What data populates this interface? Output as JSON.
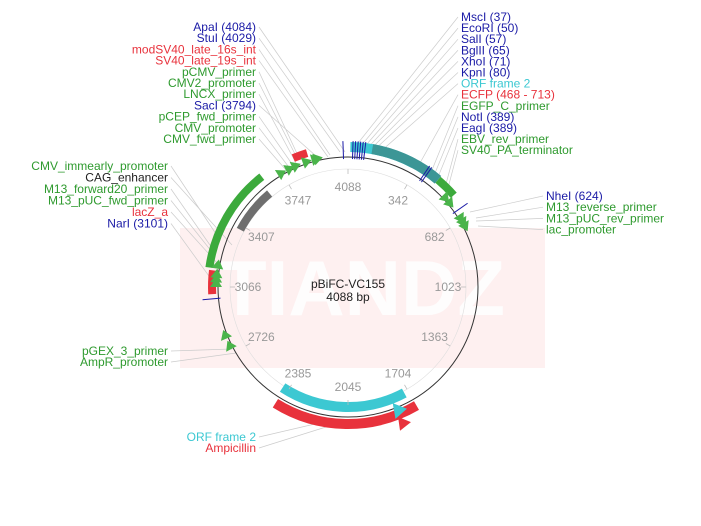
{
  "plasmid": {
    "name": "pBiFC-VC155",
    "size_label": "4088 bp",
    "total_bp": 4088
  },
  "watermark": "TIANDZ",
  "colors": {
    "enzyme": "#1a1aa6",
    "primer": "#2e9a2e",
    "promoter": "#2e9a2e",
    "red": "#e8323c",
    "cyan": "#3cc8d2",
    "green_bar": "#3caa3c",
    "grey_bar": "#6e6e6e",
    "teal_bar": "#3c9696",
    "arrow_green": "#4ab44a"
  },
  "ticks": [
    "4088",
    "342",
    "682",
    "1023",
    "1363",
    "1704",
    "2045",
    "2385",
    "2726",
    "3066",
    "3407",
    "3747"
  ],
  "left_top_labels": [
    {
      "text": "ApaI (4084)",
      "type": "enzyme"
    },
    {
      "text": "StuI (4029)",
      "type": "enzyme"
    },
    {
      "text": "modSV40_late_16s_int",
      "type": "red"
    },
    {
      "text": "SV40_late_19s_int",
      "type": "red"
    },
    {
      "text": "pCMV_primer",
      "type": "primer"
    },
    {
      "text": "CMV2_promoter",
      "type": "primer"
    },
    {
      "text": "LNCX_primer",
      "type": "primer"
    },
    {
      "text": "SacI (3794)",
      "type": "enzyme"
    },
    {
      "text": "pCEP_fwd_primer",
      "type": "primer"
    },
    {
      "text": "CMV_promoter",
      "type": "primer"
    },
    {
      "text": "CMV_fwd_primer",
      "type": "primer"
    }
  ],
  "left_mid_labels": [
    {
      "text": "CMV_immearly_promoter",
      "type": "primer"
    },
    {
      "text": "CAG_enhancer",
      "type": "black"
    },
    {
      "text": "M13_forward20_primer",
      "type": "primer"
    },
    {
      "text": "M13_pUC_fwd_primer",
      "type": "primer"
    },
    {
      "text": "lacZ_a",
      "type": "red"
    },
    {
      "text": "NarI (3101)",
      "type": "enzyme"
    }
  ],
  "left_low_labels": [
    {
      "text": "pGEX_3_primer",
      "type": "primer"
    },
    {
      "text": "AmpR_promoter",
      "type": "primer"
    }
  ],
  "left_bottom_labels": [
    {
      "text": "ORF frame 2",
      "type": "cyan"
    },
    {
      "text": "Ampicillin",
      "type": "red"
    }
  ],
  "right_top_labels": [
    {
      "text": "MscI (37)",
      "type": "enzyme"
    },
    {
      "text": "EcoRI (50)",
      "type": "enzyme"
    },
    {
      "text": "SalI (57)",
      "type": "enzyme"
    },
    {
      "text": "BglII (65)",
      "type": "enzyme"
    },
    {
      "text": "XhoI (71)",
      "type": "enzyme"
    },
    {
      "text": "KpnI (80)",
      "type": "enzyme"
    },
    {
      "text": "ORF frame 2",
      "type": "cyan"
    },
    {
      "text": "ECFP (468 - 713)",
      "type": "red"
    },
    {
      "text": "EGFP_C_primer",
      "type": "primer"
    },
    {
      "text": "NotI (389)",
      "type": "enzyme"
    },
    {
      "text": "EagI (389)",
      "type": "enzyme"
    },
    {
      "text": "EBV_rev_primer",
      "type": "primer"
    },
    {
      "text": "SV40_PA_terminator",
      "type": "primer"
    }
  ],
  "right_mid_labels": [
    {
      "text": "NheI (624)",
      "type": "enzyme"
    },
    {
      "text": "M13_reverse_primer",
      "type": "primer"
    },
    {
      "text": "M13_pUC_rev_primer",
      "type": "primer"
    },
    {
      "text": "lac_promoter",
      "type": "primer"
    }
  ]
}
